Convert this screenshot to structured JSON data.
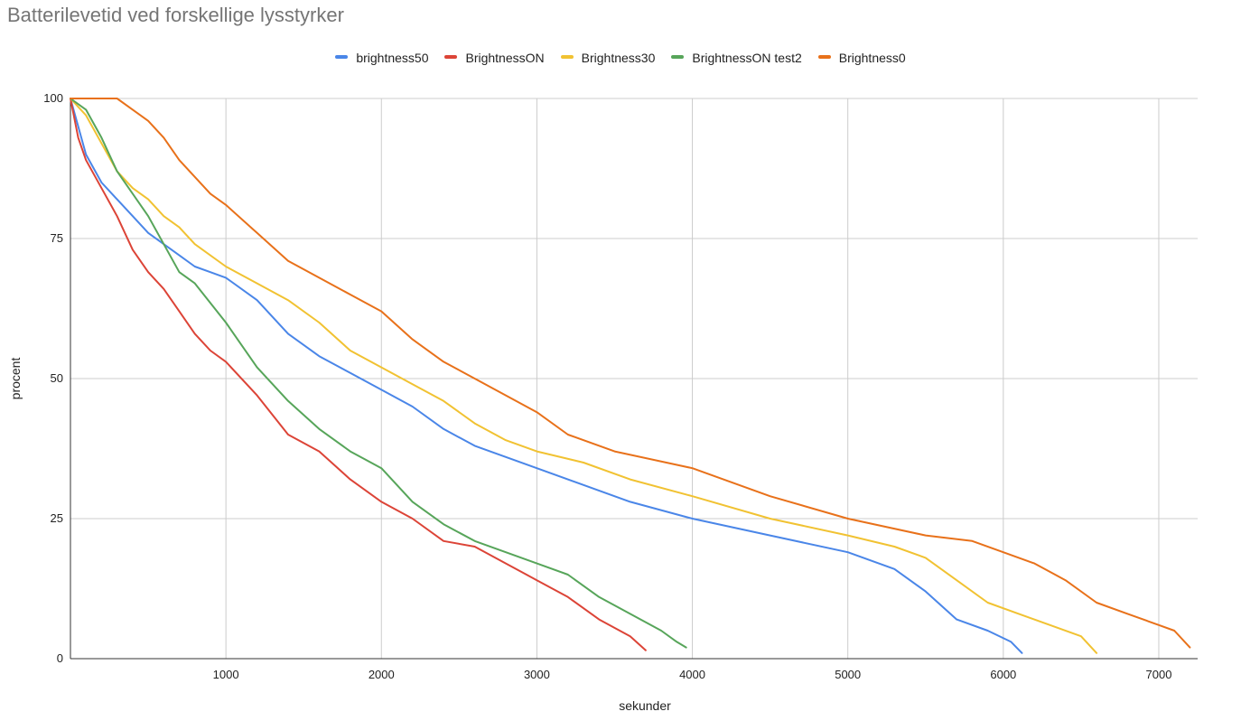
{
  "chart_data": {
    "type": "line",
    "title": "Batterilevetid ved forskellige lysstyrker",
    "xlabel": "sekunder",
    "ylabel": "procent",
    "xlim": [
      0,
      7250
    ],
    "ylim": [
      0,
      100
    ],
    "x_ticks": [
      1000,
      2000,
      3000,
      4000,
      5000,
      6000,
      7000
    ],
    "y_ticks": [
      0,
      25,
      50,
      75,
      100
    ],
    "grid": true,
    "legend_position": "top",
    "series": [
      {
        "name": "brightness50",
        "color": "#4a86e8",
        "x": [
          0,
          100,
          200,
          300,
          400,
          500,
          600,
          700,
          800,
          900,
          1000,
          1200,
          1400,
          1600,
          1800,
          2000,
          2200,
          2400,
          2600,
          2800,
          3000,
          3300,
          3600,
          4000,
          4500,
          5000,
          5300,
          5500,
          5700,
          5900,
          6050,
          6120
        ],
        "y": [
          100,
          90,
          85,
          82,
          79,
          76,
          74,
          72,
          70,
          69,
          68,
          64,
          58,
          54,
          51,
          48,
          45,
          41,
          38,
          36,
          34,
          31,
          28,
          25,
          22,
          19,
          16,
          12,
          7,
          5,
          3,
          1
        ]
      },
      {
        "name": "BrightnessON",
        "color": "#dc4437",
        "x": [
          0,
          50,
          100,
          200,
          300,
          400,
          500,
          600,
          700,
          800,
          900,
          1000,
          1200,
          1400,
          1600,
          1800,
          2000,
          2200,
          2400,
          2600,
          2800,
          3000,
          3200,
          3400,
          3600,
          3700
        ],
        "y": [
          100,
          93,
          89,
          84,
          79,
          73,
          69,
          66,
          62,
          58,
          55,
          53,
          47,
          40,
          37,
          32,
          28,
          25,
          21,
          20,
          17,
          14,
          11,
          7,
          4,
          1.5
        ]
      },
      {
        "name": "Brightness30",
        "color": "#f1c232",
        "x": [
          0,
          100,
          200,
          300,
          400,
          500,
          600,
          700,
          800,
          1000,
          1200,
          1400,
          1600,
          1800,
          2000,
          2200,
          2400,
          2600,
          2800,
          3000,
          3300,
          3600,
          4000,
          4500,
          5000,
          5300,
          5500,
          5700,
          5900,
          6100,
          6300,
          6500,
          6600
        ],
        "y": [
          100,
          97,
          92,
          87,
          84,
          82,
          79,
          77,
          74,
          70,
          67,
          64,
          60,
          55,
          52,
          49,
          46,
          42,
          39,
          37,
          35,
          32,
          29,
          25,
          22,
          20,
          18,
          14,
          10,
          8,
          6,
          4,
          1
        ]
      },
      {
        "name": "BrightnessON test2",
        "color": "#57a55a",
        "x": [
          0,
          100,
          200,
          300,
          400,
          500,
          600,
          700,
          800,
          1000,
          1200,
          1400,
          1600,
          1800,
          2000,
          2200,
          2400,
          2600,
          2800,
          3000,
          3200,
          3400,
          3600,
          3800,
          3900,
          3960
        ],
        "y": [
          100,
          98,
          93,
          87,
          83,
          79,
          74,
          69,
          67,
          60,
          52,
          46,
          41,
          37,
          34,
          28,
          24,
          21,
          19,
          17,
          15,
          11,
          8,
          5,
          3,
          2
        ]
      },
      {
        "name": "Brightness0",
        "color": "#e8711a",
        "x": [
          0,
          300,
          400,
          500,
          600,
          700,
          800,
          900,
          1000,
          1200,
          1400,
          1600,
          1800,
          2000,
          2200,
          2400,
          2600,
          2800,
          3000,
          3200,
          3500,
          4000,
          4500,
          5000,
          5500,
          5800,
          6000,
          6200,
          6400,
          6600,
          6800,
          7000,
          7100,
          7200
        ],
        "y": [
          100,
          100,
          98,
          96,
          93,
          89,
          86,
          83,
          81,
          76,
          71,
          68,
          65,
          62,
          57,
          53,
          50,
          47,
          44,
          40,
          37,
          34,
          29,
          25,
          22,
          21,
          19,
          17,
          14,
          10,
          8,
          6,
          5,
          2
        ]
      }
    ]
  }
}
